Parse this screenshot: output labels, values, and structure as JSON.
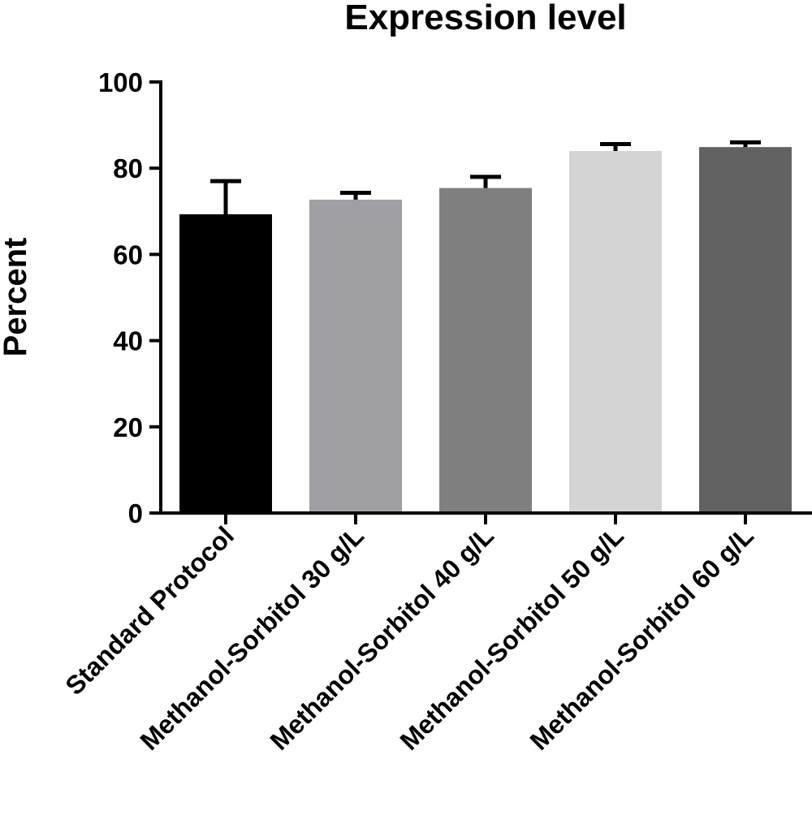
{
  "chart_data": {
    "type": "bar",
    "title": "Expression level",
    "xlabel": "",
    "ylabel": "Percent",
    "ylim": [
      0,
      100
    ],
    "yticks": [
      "0",
      "20",
      "40",
      "60",
      "80",
      "100"
    ],
    "grid": false,
    "categories": [
      "Standard Protocol",
      "Methanol-Sorbitol 30 g/L",
      "Methanol-Sorbitol 40 g/L",
      "Methanol-Sorbitol 50 g/L",
      "Methanol-Sorbitol 60 g/L"
    ],
    "values": [
      69.3,
      72.7,
      75.4,
      84.0,
      84.9
    ],
    "error_upper": [
      77.0,
      74.3,
      78.0,
      85.6,
      86.0
    ],
    "colors": [
      "#000000",
      "#a0a0a4",
      "#7f7f7f",
      "#d4d4d4",
      "#626262"
    ]
  }
}
